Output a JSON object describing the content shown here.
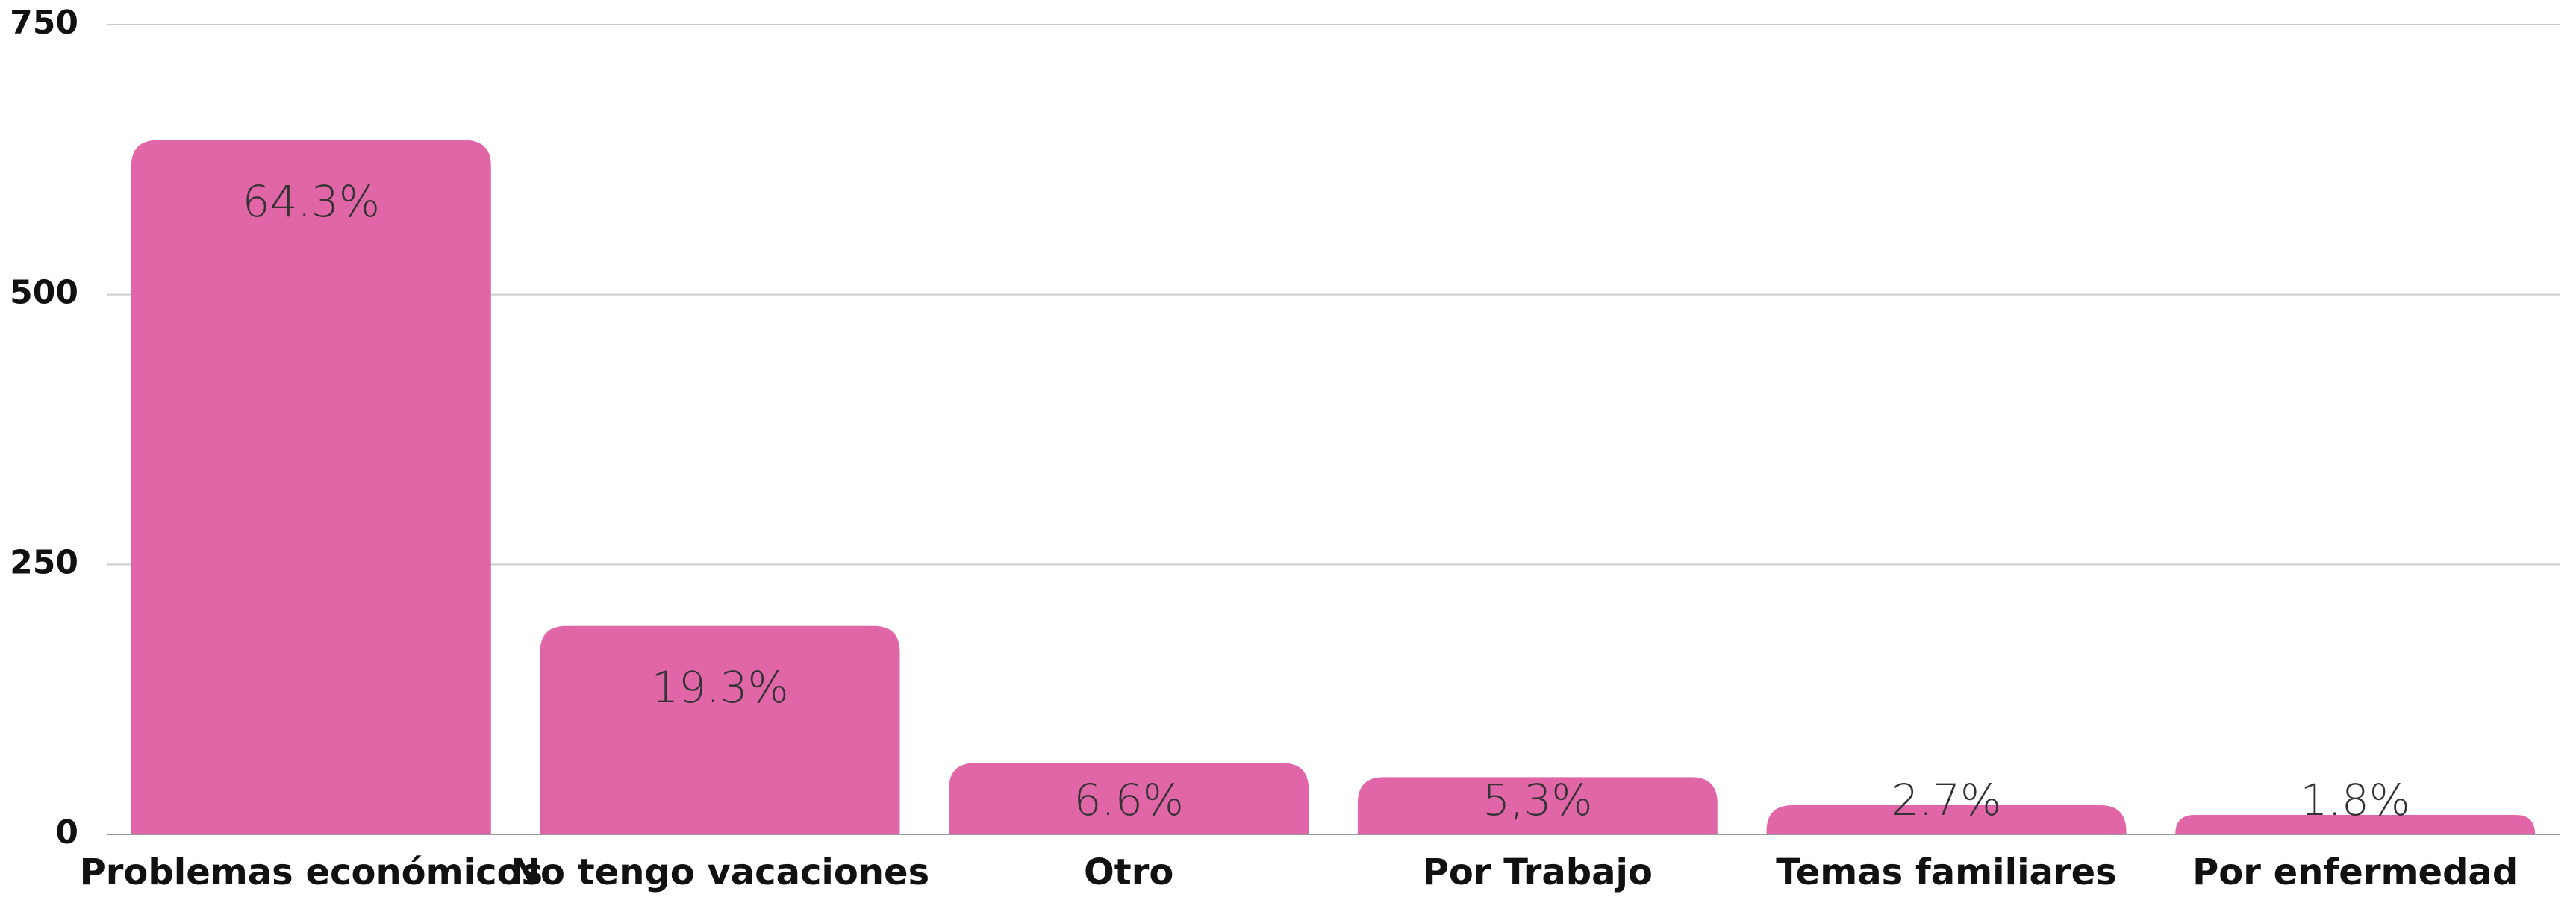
{
  "chart_data": {
    "type": "bar",
    "categories": [
      "Problemas económicos",
      "No tengo vacaciones",
      "Otro",
      "Por Trabajo",
      "Temas familiares",
      "Por enfermedad"
    ],
    "values": [
      643,
      193,
      66,
      53,
      27,
      18
    ],
    "value_labels": [
      "64.3%",
      "19.3%",
      "6.6%",
      "5,3%",
      "2.7%",
      "1.8%"
    ],
    "color": "#e066a8",
    "ylim": [
      0,
      750
    ],
    "yticks": [
      0,
      250,
      500,
      750
    ],
    "grid": true
  }
}
